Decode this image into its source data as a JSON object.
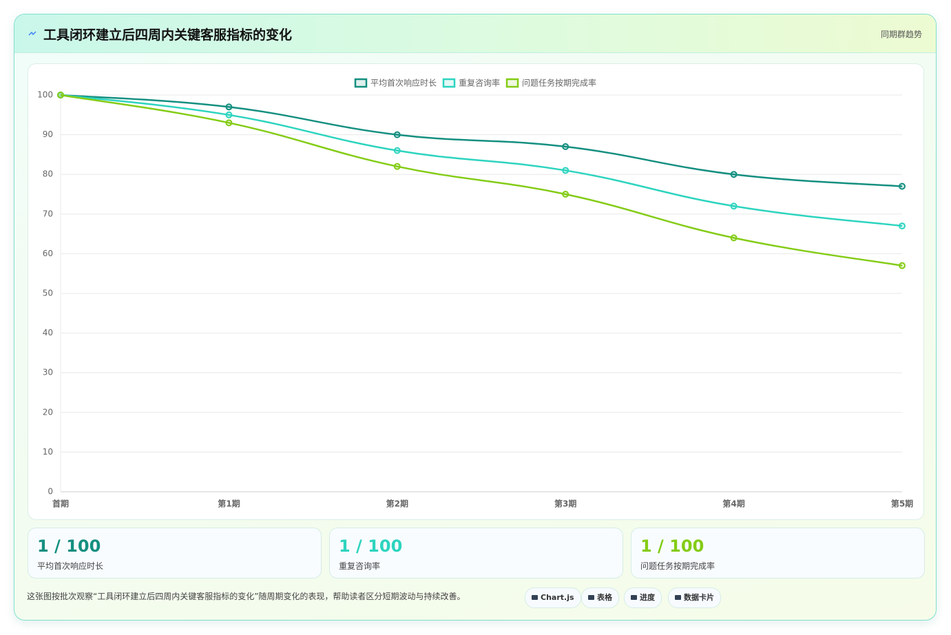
{
  "header": {
    "title": "工具闭环建立后四周内关键客服指标的变化",
    "tag": "同期群趋势"
  },
  "chart_data": {
    "type": "line",
    "categories": [
      "首期",
      "第1期",
      "第2期",
      "第3期",
      "第4期",
      "第5期"
    ],
    "series": [
      {
        "name": "平均首次响应时长",
        "color": "#148f80",
        "values": [
          100,
          97,
          90,
          87,
          80,
          77
        ]
      },
      {
        "name": "重复咨询率",
        "color": "#2dd4bf",
        "values": [
          100,
          95,
          86,
          81,
          72,
          67
        ]
      },
      {
        "name": "问题任务按期完成率",
        "color": "#84cc16",
        "values": [
          100,
          93,
          82,
          75,
          64,
          57
        ]
      }
    ],
    "ylim": [
      0,
      100
    ],
    "yticks": [
      0,
      10,
      20,
      30,
      40,
      50,
      60,
      70,
      80,
      90,
      100
    ],
    "grid": true,
    "legend": "top"
  },
  "cards": [
    {
      "value": "1 / 100",
      "label": "平均首次响应时长"
    },
    {
      "value": "1 / 100",
      "label": "重复咨询率"
    },
    {
      "value": "1 / 100",
      "label": "问题任务按期完成率"
    }
  ],
  "footer": {
    "note": "这张图按批次观察“工具闭环建立后四周内关键客服指标的变化”随周期变化的表现，帮助读者区分短期波动与持续改善。",
    "badges": [
      "Chart.js",
      "表格",
      "进度",
      "数据卡片"
    ]
  }
}
